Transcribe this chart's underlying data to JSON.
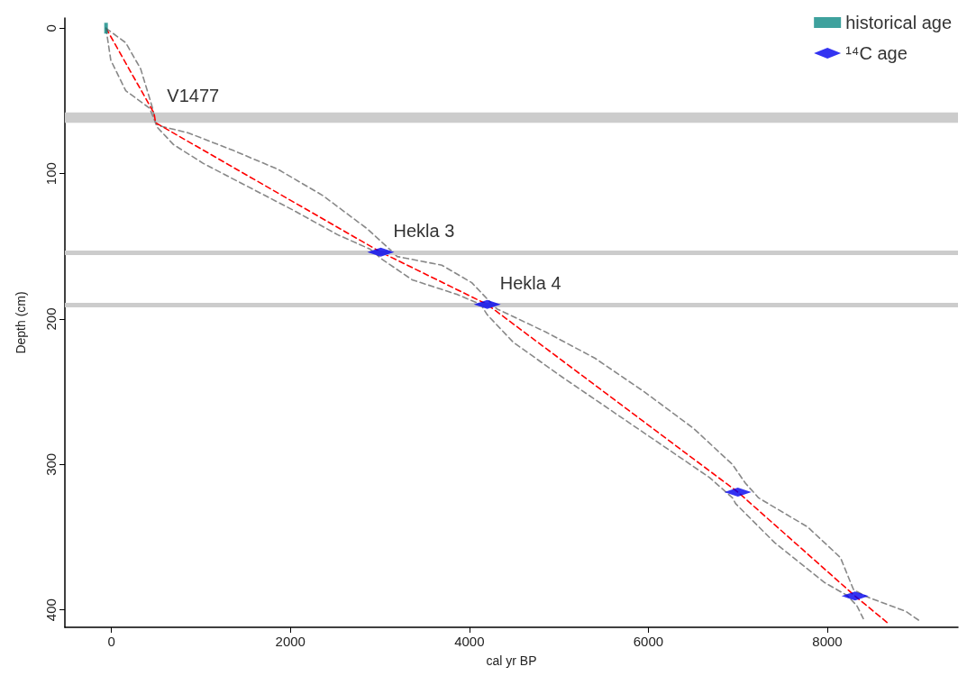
{
  "chart_data": {
    "type": "line",
    "xlabel": "cal yr BP",
    "ylabel": "Depth (cm)",
    "xlim": [
      -520,
      9460
    ],
    "xticks": [
      0,
      2000,
      4000,
      6000,
      8000
    ],
    "ylim": [
      412,
      -7
    ],
    "yticks": [
      0,
      100,
      200,
      300,
      400
    ],
    "legend": "top right",
    "series": [
      {
        "color": "#888888",
        "line_style": "dashed",
        "marker": "none",
        "x": [
          -60,
          160,
          327,
          460,
          493,
          527,
          860,
          1360,
          1860,
          2360,
          2860,
          3127,
          3193,
          3693,
          4027,
          4227,
          4308,
          4856,
          5405,
          5953,
          6501,
          6940,
          7086,
          7232,
          7780,
          8146,
          8292,
          8438,
          8877,
          9041
        ],
        "values": [
          0,
          10,
          28,
          55,
          65,
          67,
          72,
          84,
          97,
          115,
          138,
          153,
          157,
          163,
          175,
          188,
          193,
          209,
          227,
          250,
          275,
          300,
          313,
          323,
          343,
          364,
          386,
          391,
          401,
          408
        ]
      },
      {
        "color": "#888888",
        "line_style": "dashed",
        "marker": "none",
        "x": [
          -60,
          -57,
          -7,
          160,
          427,
          493,
          510,
          693,
          1027,
          1527,
          2027,
          2527,
          2893,
          3027,
          3360,
          3860,
          4127,
          4199,
          4491,
          5039,
          5587,
          6136,
          6684,
          6940,
          6976,
          7415,
          7963,
          8219,
          8329,
          8402
        ],
        "values": [
          0,
          1.6,
          22,
          43,
          55,
          65,
          68,
          80,
          93,
          109,
          125,
          142,
          152,
          159,
          173,
          183,
          190,
          197,
          216,
          240,
          263,
          286,
          309,
          323,
          327,
          354,
          381,
          390,
          397,
          406
        ]
      },
      {
        "color": "#ff0000",
        "line_style": "dashed",
        "marker": "none",
        "x": [
          -60,
          477,
          493,
          3010,
          4200,
          7000,
          8310,
          8694
        ],
        "values": [
          0,
          58.5,
          65,
          154,
          190,
          319,
          390.5,
          410
        ]
      },
      {
        "type": "scatter",
        "name": "historical age",
        "color": "#0e8a84",
        "marker": "square",
        "x": [
          -60
        ],
        "values": [
          0
        ]
      },
      {
        "type": "scatter",
        "name": "¹⁴C age",
        "color": "#0000ee",
        "marker": "diamond",
        "x": [
          3010,
          4200,
          7000,
          8310
        ],
        "values": [
          154,
          190,
          319,
          390.5
        ]
      }
    ],
    "bands": [
      {
        "axis": "y",
        "from": 58,
        "to": 65,
        "color": "#cccccc"
      }
    ],
    "ref_lines": [
      {
        "axis": "y",
        "value": 154,
        "color": "#cccccc"
      },
      {
        "axis": "y",
        "value": 190,
        "color": "#cccccc"
      }
    ],
    "annotations": [
      {
        "text": "V1477",
        "x": 480,
        "y": 61
      },
      {
        "text": "Hekla 3",
        "x": 3010,
        "y": 154
      },
      {
        "text": "Hekla 4",
        "x": 4200,
        "y": 190
      }
    ]
  }
}
